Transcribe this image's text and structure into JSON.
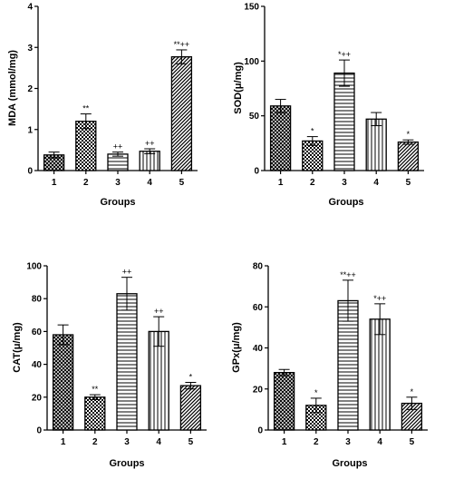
{
  "chart_data": [
    {
      "type": "bar",
      "title": "",
      "xlabel": "Groups",
      "ylabel": "MDA (mmol/mg)",
      "categories": [
        "1",
        "2",
        "3",
        "4",
        "5"
      ],
      "values": [
        0.38,
        1.2,
        0.4,
        0.47,
        2.77
      ],
      "errors": [
        0.07,
        0.18,
        0.05,
        0.06,
        0.17
      ],
      "annotations": [
        "",
        "**",
        "++",
        "++",
        "**++"
      ],
      "patterns": [
        "crosshatch",
        "checker",
        "hlines",
        "vlines",
        "diagonal"
      ],
      "ylim": [
        0,
        4
      ],
      "yticks": [
        "0",
        "1",
        "2",
        "3",
        "4"
      ],
      "grid": false
    },
    {
      "type": "bar",
      "title": "",
      "xlabel": "Groups",
      "ylabel": "SOD(μ/mg)",
      "categories": [
        "1",
        "2",
        "3",
        "4",
        "5"
      ],
      "values": [
        59,
        27,
        89,
        47,
        26
      ],
      "errors": [
        6,
        4,
        12,
        6,
        2
      ],
      "annotations": [
        "",
        "*",
        "*++",
        "",
        "*"
      ],
      "patterns": [
        "crosshatch",
        "checker",
        "hlines",
        "vlines",
        "diagonal"
      ],
      "ylim": [
        0,
        150
      ],
      "yticks": [
        "0",
        "50",
        "100",
        "150"
      ],
      "grid": false
    },
    {
      "type": "bar",
      "title": "",
      "xlabel": "Groups",
      "ylabel": "CAT(μ/mg)",
      "categories": [
        "1",
        "2",
        "3",
        "4",
        "5"
      ],
      "values": [
        58,
        20,
        83,
        60,
        27
      ],
      "errors": [
        6,
        1.5,
        10,
        9,
        2
      ],
      "annotations": [
        "",
        "**",
        "++",
        "++",
        "*"
      ],
      "patterns": [
        "crosshatch",
        "checker",
        "hlines",
        "vlines",
        "diagonal"
      ],
      "ylim": [
        0,
        100
      ],
      "yticks": [
        "0",
        "20",
        "40",
        "60",
        "80",
        "100"
      ],
      "grid": false
    },
    {
      "type": "bar",
      "title": "",
      "xlabel": "Groups",
      "ylabel": "GPx(μ/mg)",
      "categories": [
        "1",
        "2",
        "3",
        "4",
        "5"
      ],
      "values": [
        28,
        12,
        63,
        54,
        13
      ],
      "errors": [
        1.5,
        3.5,
        10,
        7.5,
        3
      ],
      "annotations": [
        "",
        "*",
        "**++",
        "*++",
        "*"
      ],
      "patterns": [
        "crosshatch",
        "checker",
        "hlines",
        "vlines",
        "diagonal"
      ],
      "ylim": [
        0,
        80
      ],
      "yticks": [
        "0",
        "20",
        "40",
        "60",
        "80"
      ],
      "grid": false
    }
  ]
}
